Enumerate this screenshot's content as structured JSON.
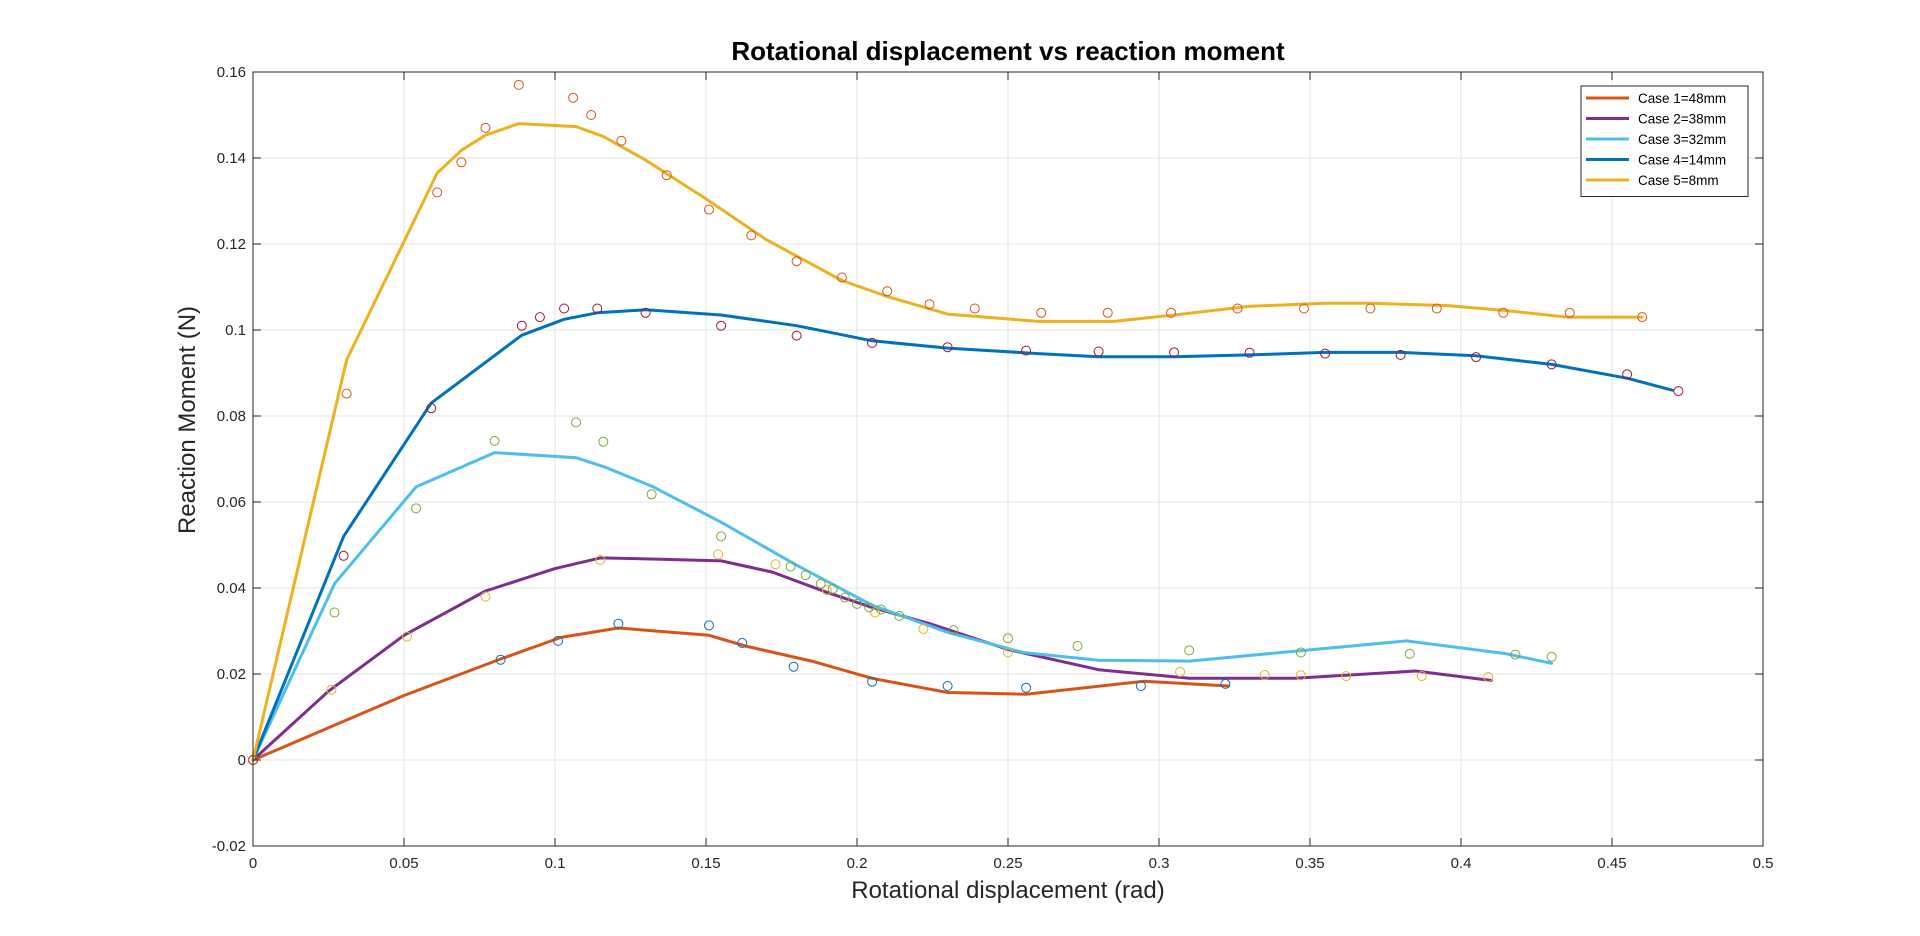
{
  "chart_data": {
    "type": "line",
    "title": "Rotational displacement vs reaction moment",
    "xlabel": "Rotational displacement (rad)",
    "ylabel": "Reaction Moment (N)",
    "xlim": [
      0,
      0.5
    ],
    "ylim": [
      -0.02,
      0.16
    ],
    "xticks": [
      0,
      0.05,
      0.1,
      0.15,
      0.2,
      0.25,
      0.3,
      0.35,
      0.4,
      0.45,
      0.5
    ],
    "xtick_labels": [
      "0",
      "0.05",
      "0.1",
      "0.15",
      "0.2",
      "0.25",
      "0.3",
      "0.35",
      "0.4",
      "0.45",
      "0.5"
    ],
    "yticks": [
      -0.02,
      0,
      0.02,
      0.04,
      0.06,
      0.08,
      0.1,
      0.12,
      0.14,
      0.16
    ],
    "ytick_labels": [
      "-0.02",
      "0",
      "0.02",
      "0.04",
      "0.06",
      "0.08",
      "0.1",
      "0.12",
      "0.14",
      "0.16"
    ],
    "grid": true,
    "legend_position": "top-right",
    "series": [
      {
        "name": "Case 1=48mm",
        "color": "#D95319",
        "line": {
          "x": [
            0,
            0.05,
            0.082,
            0.102,
            0.121,
            0.151,
            0.163,
            0.185,
            0.205,
            0.23,
            0.256,
            0.295,
            0.323
          ],
          "y": [
            0,
            0.015,
            0.0235,
            0.0285,
            0.0307,
            0.029,
            0.0265,
            0.023,
            0.019,
            0.0157,
            0.0153,
            0.0183,
            0.0172
          ]
        },
        "markers": {
          "color": "#0072BD",
          "x": [
            0,
            0.082,
            0.101,
            0.121,
            0.151,
            0.162,
            0.179,
            0.205,
            0.23,
            0.256,
            0.294,
            0.322
          ],
          "y": [
            0,
            0.0233,
            0.0277,
            0.0317,
            0.0313,
            0.0272,
            0.0217,
            0.0182,
            0.0172,
            0.0168,
            0.0172,
            0.0177
          ]
        }
      },
      {
        "name": "Case 2=38mm",
        "color": "#7E2F8E",
        "line": {
          "x": [
            0,
            0.025,
            0.05,
            0.077,
            0.1,
            0.115,
            0.135,
            0.155,
            0.172,
            0.19,
            0.205,
            0.225,
            0.25,
            0.28,
            0.31,
            0.345,
            0.385,
            0.41
          ],
          "y": [
            0,
            0.016,
            0.029,
            0.0393,
            0.0445,
            0.047,
            0.0467,
            0.0463,
            0.0437,
            0.039,
            0.0355,
            0.0315,
            0.0257,
            0.021,
            0.019,
            0.019,
            0.0207,
            0.0185
          ]
        },
        "markers": {
          "color": "#EDB120",
          "x": [
            0,
            0.026,
            0.051,
            0.077,
            0.115,
            0.154,
            0.173,
            0.19,
            0.206,
            0.222,
            0.25,
            0.307,
            0.335,
            0.347,
            0.362,
            0.387,
            0.409
          ],
          "y": [
            0,
            0.0163,
            0.0287,
            0.038,
            0.0465,
            0.0478,
            0.0455,
            0.0395,
            0.0343,
            0.0305,
            0.025,
            0.0205,
            0.0198,
            0.0197,
            0.0195,
            0.0195,
            0.0193
          ]
        }
      },
      {
        "name": "Case 3=32mm",
        "color": "#4DBEEE",
        "line": {
          "x": [
            0,
            0.027,
            0.054,
            0.08,
            0.107,
            0.117,
            0.132,
            0.155,
            0.18,
            0.205,
            0.23,
            0.255,
            0.28,
            0.31,
            0.345,
            0.382,
            0.415,
            0.43
          ],
          "y": [
            0,
            0.041,
            0.0635,
            0.0715,
            0.0703,
            0.068,
            0.0637,
            0.0553,
            0.0453,
            0.036,
            0.0297,
            0.025,
            0.0232,
            0.023,
            0.0253,
            0.0277,
            0.0247,
            0.0225
          ]
        },
        "markers": {
          "color": "#77AC30",
          "x": [
            0,
            0.027,
            0.054,
            0.08,
            0.107,
            0.116,
            0.132,
            0.155,
            0.178,
            0.183,
            0.188,
            0.192,
            0.196,
            0.2,
            0.204,
            0.208,
            0.214,
            0.232,
            0.25,
            0.273,
            0.31,
            0.347,
            0.383,
            0.418,
            0.43
          ],
          "y": [
            0,
            0.0343,
            0.0585,
            0.0742,
            0.0785,
            0.074,
            0.0618,
            0.052,
            0.045,
            0.043,
            0.041,
            0.0398,
            0.0378,
            0.0363,
            0.0355,
            0.035,
            0.0335,
            0.0302,
            0.0283,
            0.0265,
            0.0255,
            0.025,
            0.0247,
            0.0245,
            0.024
          ]
        }
      },
      {
        "name": "Case 4=14mm",
        "color": "#0072BD",
        "line": {
          "x": [
            0,
            0.03,
            0.059,
            0.089,
            0.103,
            0.114,
            0.13,
            0.155,
            0.18,
            0.205,
            0.23,
            0.26,
            0.28,
            0.305,
            0.33,
            0.355,
            0.38,
            0.405,
            0.43,
            0.455,
            0.47
          ],
          "y": [
            0,
            0.052,
            0.083,
            0.0988,
            0.1025,
            0.104,
            0.1047,
            0.1035,
            0.101,
            0.0975,
            0.0958,
            0.0945,
            0.0938,
            0.0938,
            0.0942,
            0.0948,
            0.0948,
            0.094,
            0.092,
            0.0888,
            0.086
          ]
        },
        "markers": {
          "color": "#A2142F",
          "x": [
            0,
            0.03,
            0.059,
            0.089,
            0.095,
            0.103,
            0.114,
            0.13,
            0.155,
            0.18,
            0.205,
            0.23,
            0.256,
            0.28,
            0.305,
            0.33,
            0.355,
            0.38,
            0.405,
            0.43,
            0.455,
            0.472
          ],
          "y": [
            0,
            0.0475,
            0.0818,
            0.101,
            0.103,
            0.105,
            0.105,
            0.104,
            0.101,
            0.0987,
            0.097,
            0.096,
            0.0952,
            0.095,
            0.0948,
            0.0947,
            0.0945,
            0.0942,
            0.0937,
            0.092,
            0.0897,
            0.0858
          ]
        }
      },
      {
        "name": "Case 5=8mm",
        "color": "#EDB120",
        "line": {
          "x": [
            0,
            0.031,
            0.061,
            0.069,
            0.077,
            0.088,
            0.107,
            0.116,
            0.13,
            0.15,
            0.17,
            0.195,
            0.21,
            0.23,
            0.26,
            0.285,
            0.305,
            0.33,
            0.355,
            0.37,
            0.395,
            0.415,
            0.435,
            0.46
          ],
          "y": [
            0,
            0.093,
            0.1365,
            0.1418,
            0.1453,
            0.148,
            0.1473,
            0.145,
            0.1395,
            0.1305,
            0.121,
            0.1115,
            0.1078,
            0.1037,
            0.102,
            0.102,
            0.1035,
            0.1055,
            0.1062,
            0.1062,
            0.1057,
            0.1045,
            0.103,
            0.103
          ]
        },
        "markers": {
          "color": "#D95319",
          "x": [
            0,
            0.031,
            0.061,
            0.069,
            0.077,
            0.088,
            0.106,
            0.112,
            0.122,
            0.137,
            0.151,
            0.165,
            0.18,
            0.195,
            0.21,
            0.224,
            0.239,
            0.261,
            0.283,
            0.304,
            0.326,
            0.348,
            0.37,
            0.392,
            0.414,
            0.436,
            0.46
          ],
          "y": [
            0,
            0.0852,
            0.132,
            0.139,
            0.147,
            0.157,
            0.154,
            0.15,
            0.144,
            0.136,
            0.128,
            0.122,
            0.116,
            0.1122,
            0.109,
            0.106,
            0.105,
            0.104,
            0.104,
            0.104,
            0.105,
            0.105,
            0.105,
            0.105,
            0.104,
            0.104,
            0.103
          ]
        }
      }
    ]
  }
}
